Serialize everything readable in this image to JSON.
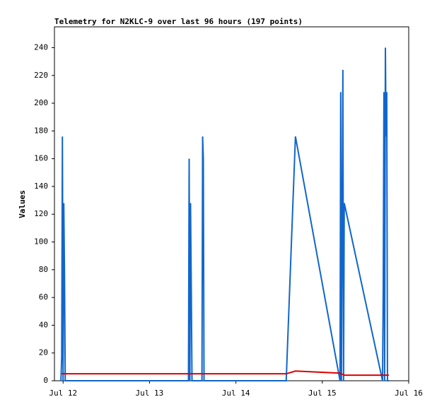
{
  "chart_data": {
    "type": "line",
    "title": "Telemetry for N2KLC-9 over last 96 hours (197 points)",
    "y_label": "Values",
    "xlim": [
      -0.1,
      4
    ],
    "ylim": [
      0,
      255
    ],
    "xticks": [
      {
        "value": 0,
        "label": "Jul 12"
      },
      {
        "value": 1,
        "label": "Jul 13"
      },
      {
        "value": 2,
        "label": "Jul 14"
      },
      {
        "value": 3,
        "label": "Jul 15"
      },
      {
        "value": 4,
        "label": "Jul 16"
      }
    ],
    "yticks": [
      0,
      20,
      40,
      60,
      80,
      100,
      120,
      140,
      160,
      180,
      200,
      220,
      240
    ],
    "series": [
      {
        "color": "#1166cc",
        "x": [
          -0.025,
          -0.016,
          -0.008,
          0,
          0.008,
          0.016,
          0.025,
          1.451,
          1.459,
          1.467,
          1.475,
          1.484,
          1.492,
          1.607,
          1.615,
          1.623,
          1.631,
          2.582,
          2.689,
          3.205,
          3.213,
          3.221,
          3.238,
          3.246,
          3.254,
          3.697,
          3.705,
          3.713,
          3.721,
          3.73,
          3.738,
          3.746,
          3.754,
          3.77
        ],
        "values": [
          0,
          17,
          176,
          0,
          128,
          80,
          0,
          0,
          160,
          0,
          128,
          64,
          0,
          0,
          176,
          160,
          0,
          0,
          176,
          0,
          208,
          0,
          224,
          0,
          128,
          0,
          64,
          208,
          0,
          240,
          176,
          208,
          0,
          0
        ]
      },
      {
        "color": "#dd0000",
        "x": [
          -0.016,
          2.582,
          2.689,
          3.205,
          3.254,
          3.77
        ],
        "values": [
          5,
          5,
          7,
          5.5,
          4,
          4
        ]
      }
    ]
  }
}
